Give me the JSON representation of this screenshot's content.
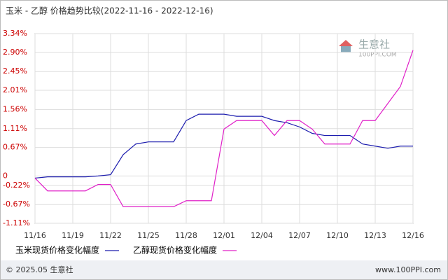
{
  "chart_data": {
    "type": "line",
    "title": "玉米 - 乙醇 价格趋势比较(2022-11-16 - 2022-12-16)",
    "categories": [
      "11/16",
      null,
      null,
      "11/19",
      null,
      null,
      "11/22",
      null,
      null,
      "11/25",
      null,
      null,
      "11/28",
      null,
      null,
      "12/01",
      null,
      null,
      "12/04",
      null,
      null,
      "12/07",
      null,
      null,
      "12/10",
      null,
      null,
      "12/13",
      null,
      null,
      "12/16"
    ],
    "series": [
      {
        "name": "玉米现货价格变化幅度",
        "color": "#1c1cae",
        "values": [
          -0.05,
          -0.02,
          -0.02,
          -0.02,
          -0.02,
          0.0,
          0.03,
          0.5,
          0.75,
          0.8,
          0.8,
          0.8,
          1.3,
          1.45,
          1.45,
          1.45,
          1.4,
          1.4,
          1.4,
          1.3,
          1.25,
          1.15,
          1.0,
          0.95,
          0.95,
          0.95,
          0.75,
          0.7,
          0.65,
          0.7,
          0.7
        ]
      },
      {
        "name": "乙醇现货价格变化幅度",
        "color": "#e020c8",
        "values": [
          -0.05,
          -0.35,
          -0.35,
          -0.35,
          -0.35,
          -0.2,
          -0.2,
          -0.72,
          -0.72,
          -0.72,
          -0.72,
          -0.72,
          -0.58,
          -0.58,
          -0.58,
          1.1,
          1.3,
          1.3,
          1.3,
          0.95,
          1.3,
          1.3,
          1.1,
          0.75,
          0.75,
          0.75,
          1.3,
          1.3,
          1.7,
          2.1,
          2.95
        ]
      }
    ],
    "ylim": [
      -1.11,
      3.34
    ],
    "yticks": [
      {
        "value": -1.11,
        "label": "-1.11%"
      },
      {
        "value": -0.67,
        "label": "-0.67%"
      },
      {
        "value": -0.22,
        "label": "-0.22%"
      },
      0,
      {
        "value": 0.67,
        "label": "0.67%"
      },
      {
        "value": 1.11,
        "label": "1.11%"
      },
      {
        "value": 1.56,
        "label": "1.56%"
      },
      {
        "value": 2.01,
        "label": "2.01%"
      },
      {
        "value": 2.45,
        "label": "2.45%"
      },
      {
        "value": 2.9,
        "label": "2.90%"
      },
      {
        "value": 3.34,
        "label": "3.34%"
      }
    ],
    "grid": true,
    "legend": "bottom-left"
  },
  "watermark": {
    "name": "生意社",
    "url": "100PPI.COM"
  },
  "footer": {
    "copyright": "© 2025.05 生意社",
    "site": "www.100PPI.com"
  }
}
